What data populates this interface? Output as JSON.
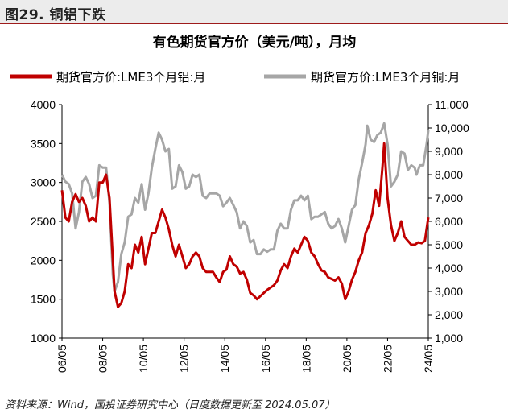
{
  "figure": {
    "label": "图29. 铜铝下跌",
    "source": "资料来源：Wind，国投证券研究中心（日度数据更新至 2024.05.07）"
  },
  "chart_data": {
    "type": "line",
    "title": "有色期货官方价（美元/吨），月均",
    "legend_position": "top",
    "grid": false,
    "x_ticks": [
      "06/05",
      "08/05",
      "10/05",
      "12/05",
      "14/05",
      "16/05",
      "18/05",
      "20/05",
      "22/05",
      "24/05"
    ],
    "x_range": [
      "2006-05",
      "2024-05"
    ],
    "y_left": {
      "range": [
        1000,
        4000
      ],
      "ticks": [
        "1000",
        "1500",
        "2000",
        "2500",
        "3000",
        "3500",
        "4000"
      ]
    },
    "y_right": {
      "range": [
        1000,
        11000
      ],
      "ticks": [
        "1,000",
        "2,000",
        "3,000",
        "4,000",
        "5,000",
        "6,000",
        "7,000",
        "8,000",
        "9,000",
        "10,000",
        "11,000"
      ]
    },
    "series": [
      {
        "name": "期货官方价:LME3个月铝:月",
        "color": "#c00000",
        "axis": "left",
        "points": [
          [
            "2006-05",
            2900
          ],
          [
            "2006-07",
            2550
          ],
          [
            "2006-09",
            2500
          ],
          [
            "2006-11",
            2750
          ],
          [
            "2007-01",
            2850
          ],
          [
            "2007-03",
            2750
          ],
          [
            "2007-05",
            2800
          ],
          [
            "2007-07",
            2700
          ],
          [
            "2007-09",
            2500
          ],
          [
            "2007-11",
            2550
          ],
          [
            "2008-01",
            2500
          ],
          [
            "2008-03",
            3000
          ],
          [
            "2008-05",
            3000
          ],
          [
            "2008-07",
            3100
          ],
          [
            "2008-09",
            2800
          ],
          [
            "2008-11",
            2000
          ],
          [
            "2008-12",
            1600
          ],
          [
            "2009-02",
            1400
          ],
          [
            "2009-04",
            1450
          ],
          [
            "2009-06",
            1600
          ],
          [
            "2009-08",
            1950
          ],
          [
            "2009-10",
            1900
          ],
          [
            "2009-12",
            2200
          ],
          [
            "2010-02",
            2100
          ],
          [
            "2010-04",
            2300
          ],
          [
            "2010-06",
            1950
          ],
          [
            "2010-08",
            2150
          ],
          [
            "2010-10",
            2350
          ],
          [
            "2010-12",
            2350
          ],
          [
            "2011-02",
            2500
          ],
          [
            "2011-04",
            2650
          ],
          [
            "2011-06",
            2550
          ],
          [
            "2011-08",
            2400
          ],
          [
            "2011-10",
            2200
          ],
          [
            "2011-12",
            2050
          ],
          [
            "2012-02",
            2200
          ],
          [
            "2012-04",
            2050
          ],
          [
            "2012-06",
            1900
          ],
          [
            "2012-08",
            1950
          ],
          [
            "2012-10",
            2050
          ],
          [
            "2012-12",
            2100
          ],
          [
            "2013-02",
            2050
          ],
          [
            "2013-04",
            1900
          ],
          [
            "2013-06",
            1850
          ],
          [
            "2013-08",
            1850
          ],
          [
            "2013-10",
            1850
          ],
          [
            "2013-12",
            1780
          ],
          [
            "2014-02",
            1720
          ],
          [
            "2014-04",
            1850
          ],
          [
            "2014-06",
            1880
          ],
          [
            "2014-08",
            2050
          ],
          [
            "2014-10",
            1950
          ],
          [
            "2014-12",
            1920
          ],
          [
            "2015-02",
            1830
          ],
          [
            "2015-04",
            1850
          ],
          [
            "2015-06",
            1750
          ],
          [
            "2015-08",
            1580
          ],
          [
            "2015-10",
            1550
          ],
          [
            "2015-12",
            1500
          ],
          [
            "2016-02",
            1540
          ],
          [
            "2016-04",
            1580
          ],
          [
            "2016-06",
            1620
          ],
          [
            "2016-08",
            1650
          ],
          [
            "2016-10",
            1680
          ],
          [
            "2016-12",
            1740
          ],
          [
            "2017-02",
            1870
          ],
          [
            "2017-04",
            1950
          ],
          [
            "2017-06",
            1900
          ],
          [
            "2017-08",
            2050
          ],
          [
            "2017-10",
            2150
          ],
          [
            "2017-12",
            2100
          ],
          [
            "2018-02",
            2200
          ],
          [
            "2018-04",
            2300
          ],
          [
            "2018-06",
            2250
          ],
          [
            "2018-08",
            2100
          ],
          [
            "2018-10",
            2050
          ],
          [
            "2018-12",
            1950
          ],
          [
            "2019-02",
            1870
          ],
          [
            "2019-04",
            1850
          ],
          [
            "2019-06",
            1780
          ],
          [
            "2019-08",
            1760
          ],
          [
            "2019-10",
            1740
          ],
          [
            "2019-12",
            1780
          ],
          [
            "2020-02",
            1700
          ],
          [
            "2020-04",
            1500
          ],
          [
            "2020-06",
            1600
          ],
          [
            "2020-08",
            1750
          ],
          [
            "2020-10",
            1850
          ],
          [
            "2020-12",
            2000
          ],
          [
            "2021-02",
            2100
          ],
          [
            "2021-04",
            2350
          ],
          [
            "2021-06",
            2450
          ],
          [
            "2021-08",
            2600
          ],
          [
            "2021-10",
            2900
          ],
          [
            "2021-12",
            2700
          ],
          [
            "2022-02",
            3200
          ],
          [
            "2022-03",
            3500
          ],
          [
            "2022-05",
            2800
          ],
          [
            "2022-07",
            2450
          ],
          [
            "2022-09",
            2250
          ],
          [
            "2022-11",
            2350
          ],
          [
            "2023-01",
            2500
          ],
          [
            "2023-03",
            2300
          ],
          [
            "2023-05",
            2250
          ],
          [
            "2023-07",
            2200
          ],
          [
            "2023-09",
            2200
          ],
          [
            "2023-11",
            2230
          ],
          [
            "2024-01",
            2220
          ],
          [
            "2024-03",
            2250
          ],
          [
            "2024-05",
            2550
          ]
        ]
      },
      {
        "name": "期货官方价:LME3个月铜:月",
        "color": "#a6a6a6",
        "axis": "right",
        "points": [
          [
            "2006-05",
            8000
          ],
          [
            "2006-07",
            7700
          ],
          [
            "2006-09",
            7600
          ],
          [
            "2006-11",
            7200
          ],
          [
            "2007-01",
            5700
          ],
          [
            "2007-03",
            6400
          ],
          [
            "2007-05",
            7700
          ],
          [
            "2007-07",
            7900
          ],
          [
            "2007-09",
            7600
          ],
          [
            "2007-11",
            7000
          ],
          [
            "2008-01",
            7100
          ],
          [
            "2008-03",
            8400
          ],
          [
            "2008-05",
            8300
          ],
          [
            "2008-07",
            8300
          ],
          [
            "2008-09",
            6800
          ],
          [
            "2008-11",
            3700
          ],
          [
            "2008-12",
            3000
          ],
          [
            "2009-02",
            3400
          ],
          [
            "2009-04",
            4600
          ],
          [
            "2009-06",
            5100
          ],
          [
            "2009-08",
            6200
          ],
          [
            "2009-10",
            6300
          ],
          [
            "2009-12",
            7000
          ],
          [
            "2010-02",
            6800
          ],
          [
            "2010-04",
            7600
          ],
          [
            "2010-06",
            6500
          ],
          [
            "2010-08",
            7200
          ],
          [
            "2010-10",
            8300
          ],
          [
            "2010-12",
            9100
          ],
          [
            "2011-02",
            9800
          ],
          [
            "2011-04",
            9500
          ],
          [
            "2011-06",
            9000
          ],
          [
            "2011-08",
            9100
          ],
          [
            "2011-10",
            7400
          ],
          [
            "2011-12",
            7500
          ],
          [
            "2012-02",
            8400
          ],
          [
            "2012-04",
            8100
          ],
          [
            "2012-06",
            7400
          ],
          [
            "2012-08",
            7500
          ],
          [
            "2012-10",
            8000
          ],
          [
            "2012-12",
            7900
          ],
          [
            "2013-02",
            8000
          ],
          [
            "2013-04",
            7100
          ],
          [
            "2013-06",
            7000
          ],
          [
            "2013-08",
            7200
          ],
          [
            "2013-10",
            7200
          ],
          [
            "2013-12",
            7200
          ],
          [
            "2014-02",
            7100
          ],
          [
            "2014-04",
            6650
          ],
          [
            "2014-06",
            6800
          ],
          [
            "2014-08",
            7000
          ],
          [
            "2014-10",
            6700
          ],
          [
            "2014-12",
            6400
          ],
          [
            "2015-02",
            5700
          ],
          [
            "2015-04",
            6000
          ],
          [
            "2015-06",
            5800
          ],
          [
            "2015-08",
            5100
          ],
          [
            "2015-10",
            5200
          ],
          [
            "2015-12",
            4600
          ],
          [
            "2016-02",
            4600
          ],
          [
            "2016-04",
            4800
          ],
          [
            "2016-06",
            4700
          ],
          [
            "2016-08",
            4800
          ],
          [
            "2016-10",
            4800
          ],
          [
            "2016-12",
            5600
          ],
          [
            "2017-02",
            5900
          ],
          [
            "2017-04",
            5700
          ],
          [
            "2017-06",
            5700
          ],
          [
            "2017-08",
            6500
          ],
          [
            "2017-10",
            6900
          ],
          [
            "2017-12",
            6900
          ],
          [
            "2018-02",
            7100
          ],
          [
            "2018-04",
            6900
          ],
          [
            "2018-06",
            7100
          ],
          [
            "2018-08",
            6100
          ],
          [
            "2018-10",
            6200
          ],
          [
            "2018-12",
            6200
          ],
          [
            "2019-02",
            6300
          ],
          [
            "2019-04",
            6400
          ],
          [
            "2019-06",
            5900
          ],
          [
            "2019-08",
            5700
          ],
          [
            "2019-10",
            5800
          ],
          [
            "2019-12",
            6100
          ],
          [
            "2020-02",
            5700
          ],
          [
            "2020-04",
            5100
          ],
          [
            "2020-06",
            5800
          ],
          [
            "2020-08",
            6500
          ],
          [
            "2020-10",
            6700
          ],
          [
            "2020-12",
            7800
          ],
          [
            "2021-02",
            8500
          ],
          [
            "2021-04",
            9300
          ],
          [
            "2021-05",
            10100
          ],
          [
            "2021-07",
            9500
          ],
          [
            "2021-09",
            9400
          ],
          [
            "2021-11",
            9700
          ],
          [
            "2022-01",
            9800
          ],
          [
            "2022-03",
            10200
          ],
          [
            "2022-05",
            9300
          ],
          [
            "2022-07",
            7500
          ],
          [
            "2022-09",
            7700
          ],
          [
            "2022-11",
            8000
          ],
          [
            "2023-01",
            9000
          ],
          [
            "2023-03",
            8900
          ],
          [
            "2023-05",
            8200
          ],
          [
            "2023-07",
            8400
          ],
          [
            "2023-09",
            8300
          ],
          [
            "2023-10",
            8000
          ],
          [
            "2023-12",
            8400
          ],
          [
            "2024-02",
            8400
          ],
          [
            "2024-04",
            9300
          ],
          [
            "2024-05",
            9900
          ]
        ]
      }
    ]
  }
}
